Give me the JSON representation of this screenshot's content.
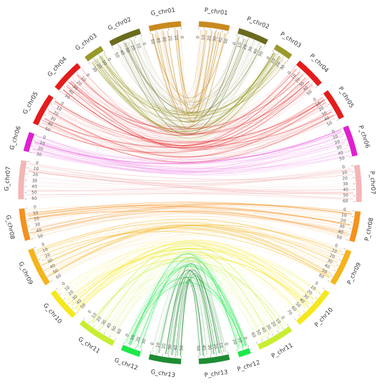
{
  "chart_data": {
    "type": "chord",
    "g_chromosomes": [
      {
        "label": "G_chr01",
        "length": 50,
        "color": "#c98a1f"
      },
      {
        "label": "G_chr02",
        "length": 50,
        "color": "#6b6b1f"
      },
      {
        "label": "G_chr03",
        "length": 30,
        "color": "#9a9a2a"
      },
      {
        "label": "G_chr04",
        "length": 50,
        "color": "#e41c1c"
      },
      {
        "label": "G_chr05",
        "length": 50,
        "color": "#e41c1c"
      },
      {
        "label": "G_chr06",
        "length": 30,
        "color": "#e020d0"
      },
      {
        "label": "G_chr07",
        "length": 60,
        "color": "#f5b5b5"
      },
      {
        "label": "G_chr08",
        "length": 50,
        "color": "#f5921e"
      },
      {
        "label": "G_chr09",
        "length": 60,
        "color": "#f5b41e"
      },
      {
        "label": "G_chr10",
        "length": 50,
        "color": "#f5e81e"
      },
      {
        "label": "G_chr11",
        "length": 60,
        "color": "#c8ee32"
      },
      {
        "label": "G_chr12",
        "length": 30,
        "color": "#1ee84a"
      },
      {
        "label": "G_chr13",
        "length": 50,
        "color": "#1e8c32"
      }
    ],
    "p_chromosomes": [
      {
        "label": "P_chr01",
        "length": 50,
        "color": "#c98a1f"
      },
      {
        "label": "P_chr02",
        "length": 50,
        "color": "#6b6b1f"
      },
      {
        "label": "P_chr03",
        "length": 30,
        "color": "#9a9a2a"
      },
      {
        "label": "P_chr04",
        "length": 50,
        "color": "#e41c1c"
      },
      {
        "label": "P_chr05",
        "length": 50,
        "color": "#e41c1c"
      },
      {
        "label": "P_chr06",
        "length": 50,
        "color": "#e020d0"
      },
      {
        "label": "P_chr07",
        "length": 60,
        "color": "#f5b5b5"
      },
      {
        "label": "P_chr08",
        "length": 50,
        "color": "#f5921e"
      },
      {
        "label": "P_chr09",
        "length": 60,
        "color": "#f5b41e"
      },
      {
        "label": "P_chr10",
        "length": 70,
        "color": "#f5e81e"
      },
      {
        "label": "P_chr11",
        "length": 60,
        "color": "#c8ee32"
      },
      {
        "label": "P_chr12",
        "length": 20,
        "color": "#1ee84a"
      },
      {
        "label": "P_chr13",
        "length": 50,
        "color": "#1e8c32"
      }
    ],
    "link_pairs": [
      [
        "G_chr01",
        "P_chr01"
      ],
      [
        "G_chr02",
        "P_chr02"
      ],
      [
        "G_chr03",
        "P_chr03"
      ],
      [
        "G_chr04",
        "P_chr04"
      ],
      [
        "G_chr05",
        "P_chr05"
      ],
      [
        "G_chr06",
        "P_chr06"
      ],
      [
        "G_chr07",
        "P_chr07"
      ],
      [
        "G_chr08",
        "P_chr08"
      ],
      [
        "G_chr09",
        "P_chr09"
      ],
      [
        "G_chr10",
        "P_chr10"
      ],
      [
        "G_chr11",
        "P_chr11"
      ],
      [
        "G_chr12",
        "P_chr12"
      ],
      [
        "G_chr13",
        "P_chr13"
      ]
    ]
  }
}
